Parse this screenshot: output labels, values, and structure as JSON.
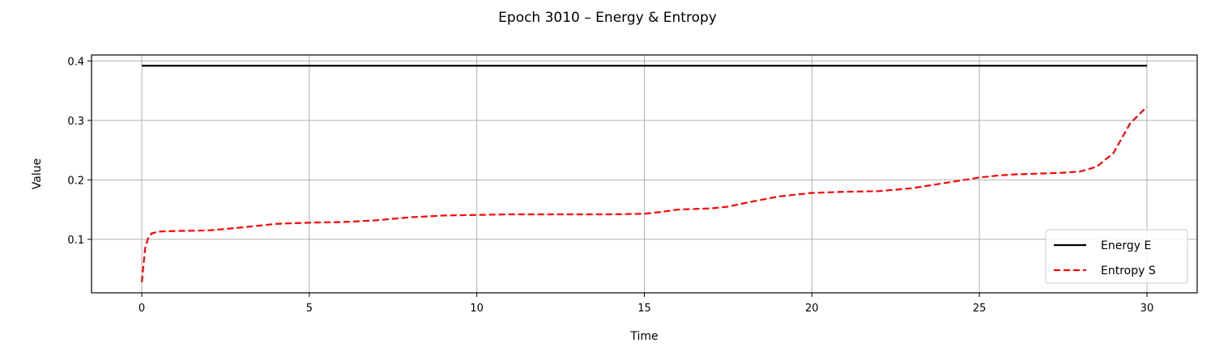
{
  "chart_data": {
    "type": "line",
    "title": "Epoch 3010 – Energy & Entropy",
    "xlabel": "Time",
    "ylabel": "Value",
    "xlim": [
      -1.5,
      31.5
    ],
    "ylim": [
      0.01,
      0.41
    ],
    "xticks": [
      0,
      5,
      10,
      15,
      20,
      25,
      30
    ],
    "xtick_labels": [
      "0",
      "5",
      "10",
      "15",
      "20",
      "25",
      "30"
    ],
    "yticks": [
      0.1,
      0.2,
      0.3,
      0.4
    ],
    "ytick_labels": [
      "0.1",
      "0.2",
      "0.3",
      "0.4"
    ],
    "grid": true,
    "legend_position": "lower-right",
    "series": [
      {
        "name": "Energy E",
        "color": "#000000",
        "style": "solid",
        "x": [
          0,
          30
        ],
        "y": [
          0.392,
          0.392
        ]
      },
      {
        "name": "Entropy S",
        "color": "#ff0000",
        "style": "dashed",
        "x": [
          0,
          0.1,
          0.2,
          0.3,
          0.5,
          1,
          2,
          3,
          4,
          5,
          6,
          7,
          8,
          9,
          10,
          11,
          12,
          13,
          14,
          15,
          15.5,
          16,
          17,
          17.5,
          18,
          19,
          20,
          21,
          22,
          23,
          24,
          25,
          25.5,
          26,
          27,
          27.5,
          28,
          28.5,
          29,
          29.5,
          30
        ],
        "y": [
          0.028,
          0.085,
          0.104,
          0.11,
          0.113,
          0.114,
          0.115,
          0.12,
          0.126,
          0.128,
          0.129,
          0.132,
          0.137,
          0.14,
          0.141,
          0.142,
          0.142,
          0.142,
          0.142,
          0.143,
          0.146,
          0.15,
          0.152,
          0.155,
          0.161,
          0.172,
          0.178,
          0.18,
          0.181,
          0.186,
          0.195,
          0.204,
          0.207,
          0.209,
          0.211,
          0.212,
          0.214,
          0.222,
          0.245,
          0.295,
          0.323
        ]
      }
    ]
  }
}
